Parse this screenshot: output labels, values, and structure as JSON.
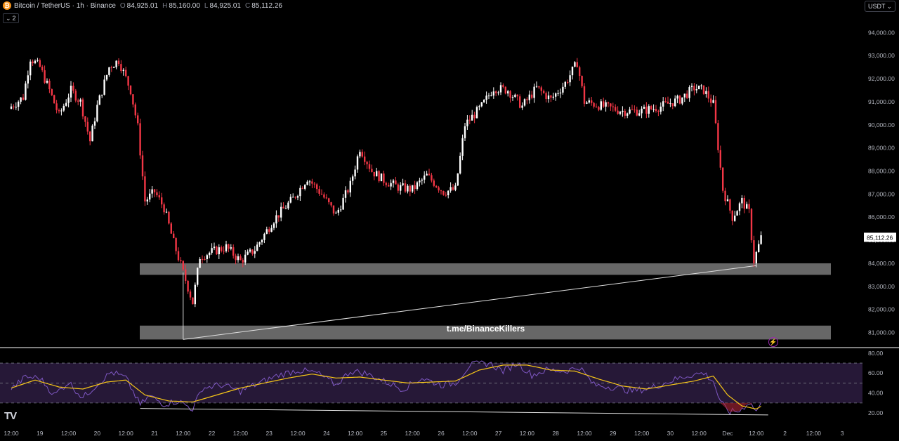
{
  "header": {
    "symbol_icon": "bitcoin-icon",
    "title": "Bitcoin / TetherUS · 1h · Binance",
    "o_label": "O",
    "o": "84,925.01",
    "h_label": "H",
    "h": "85,160.00",
    "l_label": "L",
    "l": "84,925.01",
    "c_label": "C",
    "c": "85,112.26",
    "indicators_count": "2"
  },
  "currency_button": "USDT",
  "watermark": "t.me/BinanceKillers",
  "colors": {
    "background": "#000000",
    "up": "#ffffff",
    "down": "#f23645",
    "zone": "#8a8a8a",
    "rsi_line": "#7e57c2",
    "rsi_ma": "#f5c518",
    "grid_text": "#b2b5be"
  },
  "chart_data": [
    {
      "type": "candlestick",
      "series": "Bitcoin / TetherUS",
      "timeframe": "1h",
      "y_ticks": [
        "94,000.00",
        "93,000.00",
        "92,000.00",
        "91,000.00",
        "90,000.00",
        "89,000.00",
        "88,000.00",
        "87,000.00",
        "86,000.00",
        "85,000.00",
        "84,000.00",
        "83,000.00",
        "82,000.00",
        "81,000.00"
      ],
      "ylim": [
        80500,
        94800
      ],
      "last_price": "85,112.26",
      "close_path": [
        {
          "t": 0,
          "p": 90800
        },
        {
          "t": 5,
          "p": 91200
        },
        {
          "t": 8,
          "p": 92900
        },
        {
          "t": 12,
          "p": 92500
        },
        {
          "t": 16,
          "p": 91500
        },
        {
          "t": 20,
          "p": 90400
        },
        {
          "t": 25,
          "p": 91500
        },
        {
          "t": 29,
          "p": 91000
        },
        {
          "t": 33,
          "p": 89300
        },
        {
          "t": 36,
          "p": 90800
        },
        {
          "t": 41,
          "p": 92500
        },
        {
          "t": 45,
          "p": 92800
        },
        {
          "t": 50,
          "p": 91500
        },
        {
          "t": 53,
          "p": 89900
        },
        {
          "t": 56,
          "p": 86700
        },
        {
          "t": 60,
          "p": 87100
        },
        {
          "t": 64,
          "p": 86400
        },
        {
          "t": 68,
          "p": 84900
        },
        {
          "t": 72,
          "p": 83600
        },
        {
          "t": 76,
          "p": 82300
        },
        {
          "t": 79,
          "p": 84300
        },
        {
          "t": 84,
          "p": 84500
        },
        {
          "t": 90,
          "p": 84700
        },
        {
          "t": 96,
          "p": 84100
        },
        {
          "t": 102,
          "p": 84600
        },
        {
          "t": 110,
          "p": 85900
        },
        {
          "t": 118,
          "p": 86800
        },
        {
          "t": 124,
          "p": 87700
        },
        {
          "t": 130,
          "p": 87000
        },
        {
          "t": 136,
          "p": 86100
        },
        {
          "t": 142,
          "p": 87400
        },
        {
          "t": 146,
          "p": 89000
        },
        {
          "t": 151,
          "p": 88000
        },
        {
          "t": 156,
          "p": 87600
        },
        {
          "t": 162,
          "p": 87300
        },
        {
          "t": 168,
          "p": 87200
        },
        {
          "t": 174,
          "p": 87800
        },
        {
          "t": 181,
          "p": 87100
        },
        {
          "t": 186,
          "p": 87200
        },
        {
          "t": 190,
          "p": 90000
        },
        {
          "t": 197,
          "p": 90800
        },
        {
          "t": 202,
          "p": 91600
        },
        {
          "t": 208,
          "p": 91500
        },
        {
          "t": 214,
          "p": 90800
        },
        {
          "t": 220,
          "p": 91600
        },
        {
          "t": 226,
          "p": 91100
        },
        {
          "t": 232,
          "p": 91800
        },
        {
          "t": 237,
          "p": 92700
        },
        {
          "t": 240,
          "p": 91000
        },
        {
          "t": 248,
          "p": 90800
        },
        {
          "t": 256,
          "p": 90600
        },
        {
          "t": 264,
          "p": 90600
        },
        {
          "t": 272,
          "p": 90800
        },
        {
          "t": 280,
          "p": 91100
        },
        {
          "t": 286,
          "p": 91600
        },
        {
          "t": 290,
          "p": 91500
        },
        {
          "t": 294,
          "p": 90900
        },
        {
          "t": 298,
          "p": 87200
        },
        {
          "t": 302,
          "p": 86000
        },
        {
          "t": 306,
          "p": 86700
        },
        {
          "t": 309,
          "p": 86200
        },
        {
          "t": 311,
          "p": 84100
        },
        {
          "t": 314,
          "p": 85100
        }
      ],
      "zones": [
        {
          "from": 83500,
          "to": 84000
        },
        {
          "from": 80700,
          "to": 81300
        }
      ],
      "trendline": {
        "from": {
          "t": 72,
          "p": 80700
        },
        "to": {
          "t": 312,
          "p": 83900
        }
      }
    },
    {
      "type": "line",
      "series": "RSI",
      "y_ticks": [
        "80.00",
        "60.00",
        "40.00",
        "20.00"
      ],
      "ylim": [
        13,
        82
      ],
      "bands": [
        70,
        50,
        30
      ],
      "rsi_path": [
        {
          "t": 0,
          "p": 44
        },
        {
          "t": 6,
          "p": 56
        },
        {
          "t": 12,
          "p": 55
        },
        {
          "t": 18,
          "p": 38
        },
        {
          "t": 24,
          "p": 51
        },
        {
          "t": 30,
          "p": 35
        },
        {
          "t": 36,
          "p": 49
        },
        {
          "t": 42,
          "p": 61
        },
        {
          "t": 48,
          "p": 55
        },
        {
          "t": 54,
          "p": 28
        },
        {
          "t": 58,
          "p": 37
        },
        {
          "t": 64,
          "p": 29
        },
        {
          "t": 70,
          "p": 32
        },
        {
          "t": 76,
          "p": 24
        },
        {
          "t": 80,
          "p": 45
        },
        {
          "t": 88,
          "p": 48
        },
        {
          "t": 96,
          "p": 42
        },
        {
          "t": 104,
          "p": 50
        },
        {
          "t": 112,
          "p": 58
        },
        {
          "t": 120,
          "p": 63
        },
        {
          "t": 128,
          "p": 60
        },
        {
          "t": 136,
          "p": 48
        },
        {
          "t": 142,
          "p": 62
        },
        {
          "t": 148,
          "p": 60
        },
        {
          "t": 156,
          "p": 52
        },
        {
          "t": 164,
          "p": 44
        },
        {
          "t": 172,
          "p": 55
        },
        {
          "t": 180,
          "p": 48
        },
        {
          "t": 186,
          "p": 50
        },
        {
          "t": 192,
          "p": 68
        },
        {
          "t": 200,
          "p": 70
        },
        {
          "t": 206,
          "p": 62
        },
        {
          "t": 212,
          "p": 70
        },
        {
          "t": 218,
          "p": 58
        },
        {
          "t": 224,
          "p": 63
        },
        {
          "t": 232,
          "p": 62
        },
        {
          "t": 238,
          "p": 66
        },
        {
          "t": 244,
          "p": 48
        },
        {
          "t": 252,
          "p": 46
        },
        {
          "t": 260,
          "p": 42
        },
        {
          "t": 268,
          "p": 45
        },
        {
          "t": 276,
          "p": 52
        },
        {
          "t": 284,
          "p": 58
        },
        {
          "t": 290,
          "p": 60
        },
        {
          "t": 294,
          "p": 52
        },
        {
          "t": 297,
          "p": 30
        },
        {
          "t": 301,
          "p": 21
        },
        {
          "t": 305,
          "p": 22
        },
        {
          "t": 309,
          "p": 31
        },
        {
          "t": 312,
          "p": 22
        },
        {
          "t": 315,
          "p": 31
        }
      ],
      "ma_path": [
        {
          "t": 0,
          "p": 45
        },
        {
          "t": 10,
          "p": 53
        },
        {
          "t": 20,
          "p": 46
        },
        {
          "t": 30,
          "p": 44
        },
        {
          "t": 40,
          "p": 51
        },
        {
          "t": 48,
          "p": 53
        },
        {
          "t": 56,
          "p": 38
        },
        {
          "t": 66,
          "p": 32
        },
        {
          "t": 76,
          "p": 31
        },
        {
          "t": 86,
          "p": 38
        },
        {
          "t": 96,
          "p": 45
        },
        {
          "t": 106,
          "p": 50
        },
        {
          "t": 116,
          "p": 55
        },
        {
          "t": 126,
          "p": 59
        },
        {
          "t": 136,
          "p": 55
        },
        {
          "t": 146,
          "p": 56
        },
        {
          "t": 156,
          "p": 53
        },
        {
          "t": 166,
          "p": 50
        },
        {
          "t": 176,
          "p": 51
        },
        {
          "t": 186,
          "p": 52
        },
        {
          "t": 196,
          "p": 63
        },
        {
          "t": 206,
          "p": 68
        },
        {
          "t": 216,
          "p": 68
        },
        {
          "t": 226,
          "p": 63
        },
        {
          "t": 236,
          "p": 62
        },
        {
          "t": 246,
          "p": 54
        },
        {
          "t": 256,
          "p": 47
        },
        {
          "t": 266,
          "p": 44
        },
        {
          "t": 276,
          "p": 48
        },
        {
          "t": 286,
          "p": 52
        },
        {
          "t": 294,
          "p": 57
        },
        {
          "t": 300,
          "p": 38
        },
        {
          "t": 306,
          "p": 27
        },
        {
          "t": 312,
          "p": 24
        },
        {
          "t": 315,
          "p": 28
        }
      ],
      "divergence": {
        "from": {
          "t": 54,
          "p": 24.5
        },
        "to": {
          "t": 317,
          "p": 18
        }
      }
    }
  ],
  "x_axis": {
    "ticks": [
      {
        "t": 0,
        "label": "12:00"
      },
      {
        "t": 12,
        "label": "19"
      },
      {
        "t": 24,
        "label": "12:00"
      },
      {
        "t": 36,
        "label": "20"
      },
      {
        "t": 48,
        "label": "12:00"
      },
      {
        "t": 60,
        "label": "21"
      },
      {
        "t": 72,
        "label": "12:00"
      },
      {
        "t": 84,
        "label": "22"
      },
      {
        "t": 96,
        "label": "12:00"
      },
      {
        "t": 108,
        "label": "23"
      },
      {
        "t": 120,
        "label": "12:00"
      },
      {
        "t": 132,
        "label": "24"
      },
      {
        "t": 144,
        "label": "12:00"
      },
      {
        "t": 156,
        "label": "25"
      },
      {
        "t": 168,
        "label": "12:00"
      },
      {
        "t": 180,
        "label": "26"
      },
      {
        "t": 192,
        "label": "12:00"
      },
      {
        "t": 204,
        "label": "27"
      },
      {
        "t": 216,
        "label": "12:00"
      },
      {
        "t": 228,
        "label": "28"
      },
      {
        "t": 240,
        "label": "12:00"
      },
      {
        "t": 252,
        "label": "29"
      },
      {
        "t": 264,
        "label": "12:00"
      },
      {
        "t": 276,
        "label": "30"
      },
      {
        "t": 288,
        "label": "12:00"
      },
      {
        "t": 300,
        "label": "Dec"
      },
      {
        "t": 312,
        "label": "12:00"
      },
      {
        "t": 324,
        "label": "2"
      },
      {
        "t": 336,
        "label": "12:00"
      },
      {
        "t": 348,
        "label": "3"
      },
      {
        "t": 360,
        "label": "12:00"
      }
    ]
  }
}
